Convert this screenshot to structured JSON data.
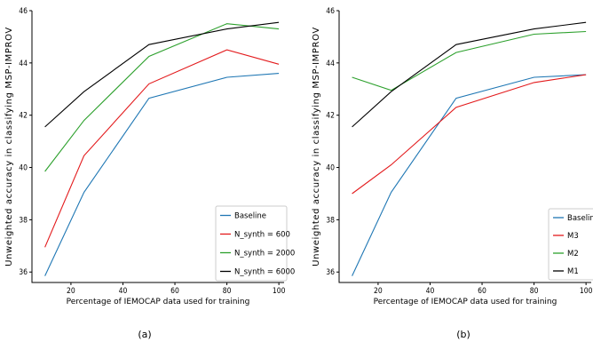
{
  "colors": {
    "blue": "#1f77b4",
    "red": "#e31a1c",
    "green": "#2ca02c",
    "black": "#000000"
  },
  "chart_data": [
    {
      "type": "line",
      "panel_label": "(a)",
      "xlabel": "Percentage of IEMOCAP data used for training",
      "ylabel": "Unweighted accuracy in classifying MSP-IMPROV",
      "xlim": [
        5,
        102
      ],
      "ylim": [
        35.6,
        46
      ],
      "x_ticks": [
        20,
        40,
        60,
        80,
        100
      ],
      "y_ticks": [
        36,
        38,
        40,
        42,
        44,
        46
      ],
      "legend_position": "bottom-right",
      "x": [
        10,
        25,
        50,
        80,
        100
      ],
      "series": [
        {
          "name": "Baseline",
          "color": "#1f77b4",
          "values": [
            35.85,
            39.05,
            42.65,
            43.45,
            43.6
          ]
        },
        {
          "name": "N_synth = 600",
          "color": "#e31a1c",
          "values": [
            36.95,
            40.45,
            43.2,
            44.5,
            43.95
          ]
        },
        {
          "name": "N_synth = 2000",
          "color": "#2ca02c",
          "values": [
            39.85,
            41.8,
            44.25,
            45.5,
            45.3
          ]
        },
        {
          "name": "N_synth = 6000",
          "color": "#000000",
          "values": [
            41.55,
            42.9,
            44.7,
            45.3,
            45.55
          ]
        }
      ]
    },
    {
      "type": "line",
      "panel_label": "(b)",
      "xlabel": "Percentage of IEMOCAP data used for training",
      "ylabel": "Unweighted accuracy in classifying MSP-IMPROV",
      "xlim": [
        5,
        102
      ],
      "ylim": [
        35.6,
        46
      ],
      "x_ticks": [
        20,
        40,
        60,
        80,
        100
      ],
      "y_ticks": [
        36,
        38,
        40,
        42,
        44,
        46
      ],
      "legend_position": "bottom-right",
      "x": [
        10,
        25,
        50,
        80,
        100
      ],
      "series": [
        {
          "name": "Baseline",
          "color": "#1f77b4",
          "values": [
            35.85,
            39.05,
            42.65,
            43.45,
            43.55
          ]
        },
        {
          "name": "M3",
          "color": "#e31a1c",
          "values": [
            39.0,
            40.1,
            42.3,
            43.25,
            43.55
          ]
        },
        {
          "name": "M2",
          "color": "#2ca02c",
          "values": [
            43.45,
            42.95,
            44.4,
            45.1,
            45.2
          ]
        },
        {
          "name": "M1",
          "color": "#000000",
          "values": [
            41.55,
            42.9,
            44.7,
            45.3,
            45.55
          ]
        }
      ]
    }
  ]
}
